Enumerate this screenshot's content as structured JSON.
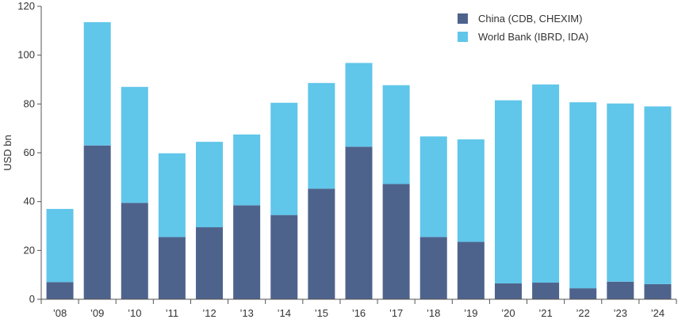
{
  "chart_data": {
    "type": "bar",
    "stacked": true,
    "title": "",
    "xlabel": "",
    "ylabel": "USD bn",
    "ylim": [
      0,
      120
    ],
    "yticks": [
      0,
      20,
      40,
      60,
      80,
      100,
      120
    ],
    "categories": [
      "’08",
      "’09",
      "’10",
      "’11",
      "’12",
      "’13",
      "’14",
      "’15",
      "’16",
      "’17",
      "’18",
      "’19",
      "’20",
      "’21",
      "’22",
      "’23",
      "’24"
    ],
    "series": [
      {
        "name": "China (CDB, CHEXIM)",
        "color": "#4e638c",
        "values": [
          7,
          63,
          39.5,
          25.5,
          29.5,
          38.5,
          34.5,
          45.3,
          62.5,
          47.2,
          25.5,
          23.5,
          6.5,
          6.8,
          4.5,
          7.2,
          6.2
        ]
      },
      {
        "name": "World Bank (IBRD, IDA)",
        "color": "#60c6ea",
        "values": [
          30,
          50.5,
          47.5,
          34.3,
          35,
          29,
          46,
          43.3,
          34.3,
          40.5,
          41.2,
          42,
          75,
          81.2,
          76.2,
          73,
          72.8
        ]
      }
    ],
    "grid": false,
    "legend_position": "top-right"
  }
}
